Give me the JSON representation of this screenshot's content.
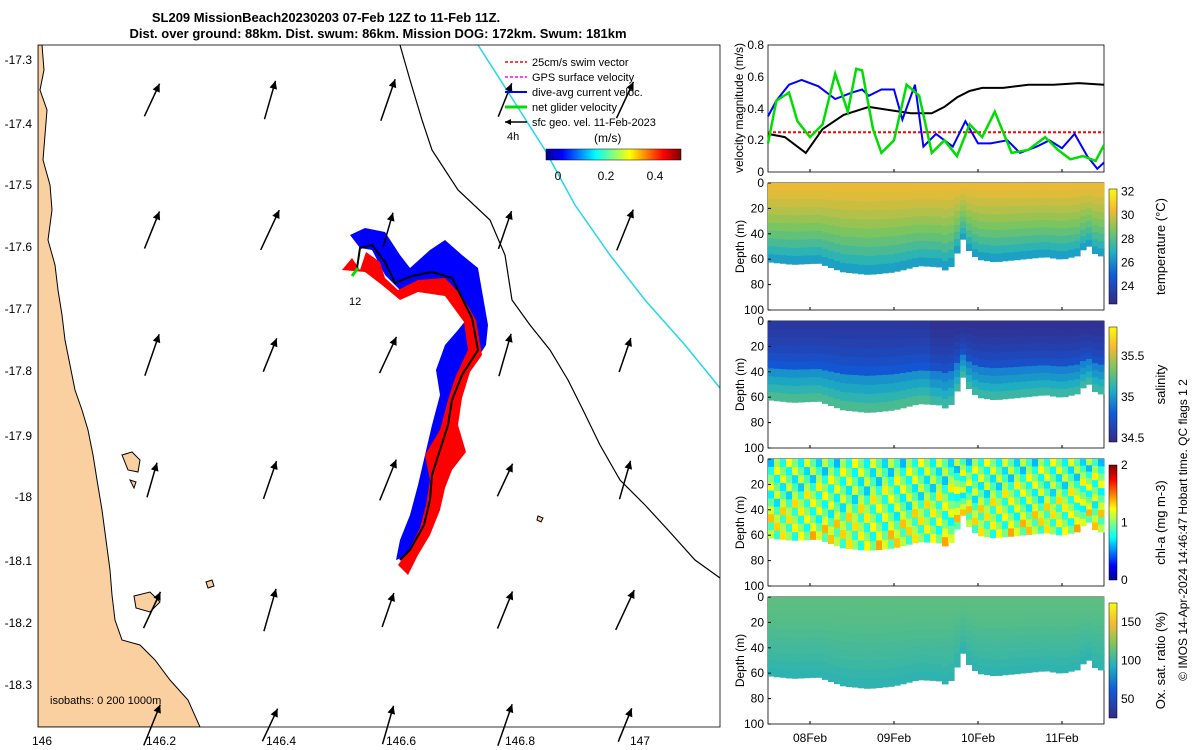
{
  "header": {
    "title_line1": "SL209 MissionBeach20230203 07-Feb 12Z to 11-Feb 11Z.",
    "title_line2": "Dist. over ground: 88km. Dist. swum: 86km. Mission DOG: 172km. Swum: 181km"
  },
  "map": {
    "lon_ticks": [
      "146",
      "146.2",
      "146.4",
      "146.6",
      "146.8",
      "147"
    ],
    "lat_ticks": [
      "-17.3",
      "-17.4",
      "-17.5",
      "-17.6",
      "-17.7",
      "-17.8",
      "-17.9",
      "-18",
      "-18.1",
      "-18.2",
      "-18.3"
    ],
    "legend": [
      {
        "label": "25cm/s swim vector",
        "color": "#ff0000"
      },
      {
        "label": "GPS surface velocity",
        "color": "#ff00ff"
      },
      {
        "label": "dive-avg current veloc.",
        "color": "#0000ff"
      },
      {
        "label": "net glider velocity",
        "color": "#00dd00"
      },
      {
        "label": "sfc geo. vel. 11-Feb-2023",
        "color": "#000000"
      }
    ],
    "time_marker": "4h",
    "day_marker": "12",
    "colorbar_unit": "(m/s)",
    "colorbar_ticks": [
      "0",
      "0.2",
      "0.4"
    ],
    "isobaths_label": "isobaths: 0   200  1000m",
    "colors": {
      "land": "#fbd0a0",
      "track_blue": "#0000ff",
      "track_red": "#ff0000",
      "contour_cyan": "#22d8e8"
    }
  },
  "chart_data": [
    {
      "type": "line",
      "name": "velocity",
      "ylabel": "velocity magnitude (m/s)",
      "ylim": [
        0,
        0.8
      ],
      "yticks": [
        "0",
        "0.2",
        "0.4",
        "0.6",
        "0.8"
      ],
      "xlim_days": [
        7.5,
        11.5
      ],
      "series": [
        {
          "name": "swim vector",
          "color": "#ff0000",
          "x": [
            7.5,
            11.5
          ],
          "y": [
            0.25,
            0.25
          ]
        },
        {
          "name": "sfc geo. vel.",
          "color": "#000000",
          "x": [
            7.5,
            7.7,
            7.95,
            8.15,
            8.4,
            8.7,
            8.95,
            9.2,
            9.45,
            9.6,
            9.75,
            9.9,
            10.05,
            10.3,
            10.6,
            10.9,
            11.2,
            11.5
          ],
          "y": [
            0.24,
            0.22,
            0.12,
            0.27,
            0.36,
            0.41,
            0.39,
            0.37,
            0.37,
            0.41,
            0.47,
            0.51,
            0.53,
            0.53,
            0.55,
            0.55,
            0.56,
            0.55
          ]
        },
        {
          "name": "dive-avg current",
          "color": "#0000ff",
          "x": [
            7.5,
            7.6,
            7.75,
            7.9,
            8.1,
            8.3,
            8.5,
            8.62,
            8.7,
            8.85,
            9.0,
            9.1,
            9.25,
            9.35,
            9.5,
            9.7,
            9.85,
            10.0,
            10.15,
            10.35,
            10.5,
            10.7,
            10.85,
            11.0,
            11.15,
            11.3,
            11.42,
            11.5
          ],
          "y": [
            0.35,
            0.45,
            0.55,
            0.58,
            0.54,
            0.46,
            0.5,
            0.52,
            0.48,
            0.52,
            0.52,
            0.33,
            0.55,
            0.16,
            0.24,
            0.16,
            0.32,
            0.18,
            0.18,
            0.2,
            0.12,
            0.16,
            0.2,
            0.15,
            0.24,
            0.1,
            0.02,
            0.06
          ]
        },
        {
          "name": "net glider",
          "color": "#00dd00",
          "x": [
            7.5,
            7.6,
            7.75,
            7.85,
            8.0,
            8.15,
            8.3,
            8.45,
            8.55,
            8.62,
            8.75,
            8.85,
            9.0,
            9.15,
            9.3,
            9.45,
            9.6,
            9.75,
            9.9,
            10.05,
            10.2,
            10.4,
            10.6,
            10.8,
            10.95,
            11.1,
            11.25,
            11.4,
            11.5
          ],
          "y": [
            0.18,
            0.45,
            0.5,
            0.32,
            0.22,
            0.3,
            0.62,
            0.38,
            0.65,
            0.64,
            0.27,
            0.12,
            0.2,
            0.55,
            0.48,
            0.12,
            0.2,
            0.1,
            0.3,
            0.22,
            0.38,
            0.12,
            0.14,
            0.22,
            0.14,
            0.08,
            0.1,
            0.07,
            0.17
          ]
        }
      ]
    },
    {
      "type": "heatmap",
      "name": "temperature",
      "ylabel": "Depth (m)",
      "cbar_label": "temperature (°C)",
      "cbar_ticks": [
        "24",
        "26",
        "28",
        "30",
        "32"
      ],
      "crange": [
        22.5,
        32.2
      ],
      "ylim": [
        100,
        0
      ],
      "yticks": [
        "0",
        "20",
        "40",
        "60",
        "80",
        "100"
      ],
      "surface_value": 30.3,
      "bottom_value": 26.2
    },
    {
      "type": "heatmap",
      "name": "salinity",
      "ylabel": "Depth (m)",
      "cbar_label": "salinity",
      "cbar_ticks": [
        "34.5",
        "35",
        "35.5"
      ],
      "crange": [
        34.45,
        35.85
      ],
      "ylim": [
        100,
        0
      ],
      "yticks": [
        "0",
        "20",
        "40",
        "60",
        "80",
        "100"
      ],
      "surface_value": 34.55,
      "bottom_value": 35.1
    },
    {
      "type": "heatmap",
      "name": "chl-a",
      "ylabel": "Depth (m)",
      "cbar_label": "chl-a (mg m-3)",
      "cbar_ticks": [
        "0",
        "1",
        "2"
      ],
      "crange": [
        0,
        2
      ],
      "ylim": [
        100,
        0
      ],
      "yticks": [
        "0",
        "20",
        "40",
        "60",
        "80",
        "100"
      ],
      "surface_value": 0.8,
      "bottom_value": 1.0
    },
    {
      "type": "heatmap",
      "name": "oxygen",
      "ylabel": "Depth (m)",
      "cbar_label": "Ox. sat. ratio (%)",
      "cbar_ticks": [
        "50",
        "100",
        "150"
      ],
      "crange": [
        25,
        175
      ],
      "ylim": [
        100,
        0
      ],
      "yticks": [
        "0",
        "20",
        "40",
        "60",
        "80",
        "100"
      ],
      "surface_value": 112,
      "bottom_value": 100
    }
  ],
  "time_axis": {
    "ticks": [
      "08Feb",
      "09Feb",
      "10Feb",
      "11Feb"
    ],
    "tick_days": [
      8,
      9,
      10,
      11
    ]
  },
  "credit": "© IMOS 14-Apr-2024 14:46:47 Hobart time. QC flags 1  2"
}
